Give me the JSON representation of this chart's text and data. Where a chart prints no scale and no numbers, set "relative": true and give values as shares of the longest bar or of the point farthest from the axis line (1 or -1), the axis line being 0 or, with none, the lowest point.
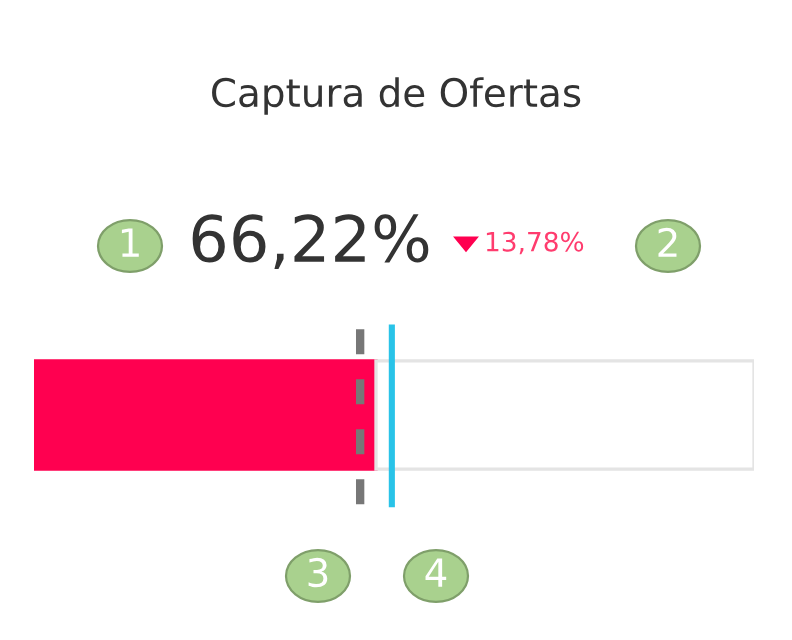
{
  "chart_data": {
    "type": "bar",
    "orientation": "horizontal",
    "stacked": true,
    "relative": true,
    "title": "Captura de Ofertas",
    "categories": [
      null
    ],
    "series": [
      {
        "color": "#ff0050",
        "values": [
          0.475
        ]
      },
      {
        "color": "#ffffff",
        "values": [
          0.525
        ]
      }
    ],
    "ref_lines": [
      {
        "axis": "x",
        "value": 0.453,
        "color": "#777777",
        "line_style": "dashed"
      },
      {
        "axis": "x",
        "value": 0.497,
        "color": "#29c3e8",
        "line_style": "solid"
      }
    ],
    "annotations": [
      "66,22%",
      "13,78%",
      "1",
      "2",
      "3",
      "4"
    ]
  }
}
